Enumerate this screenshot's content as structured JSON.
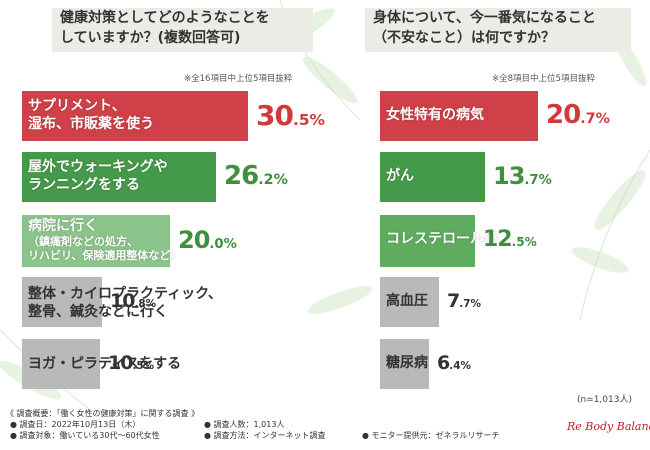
{
  "colors": {
    "red": "#d04048",
    "green_dark": "#45994a",
    "green_mid": "#5fac5f",
    "green_light": "#8cc58c",
    "gray": "#b9b9b9",
    "red_text": "#d03a3a",
    "green_text": "#3f8f3f",
    "gray_text": "#333333"
  },
  "left": {
    "title": [
      "健康対策としてどのようなことを",
      "していますか？(複数回答可)"
    ],
    "note": "※全16項目中上位5項目抜粋",
    "chart_data": {
      "type": "bar",
      "title": "健康対策としてどのようなことをしていますか？(複数回答可)",
      "categories": [
        "サプリメント、湿布、市販薬を使う",
        "屋外でウォーキングやランニングをする",
        "病院に行く（鎮痛剤などの処方、リハビリ、保険適用整体など）",
        "整体・カイロプラクティック、整骨、鍼灸などに行く",
        "ヨガ・ピラティスをする"
      ],
      "values": [
        30.5,
        26.2,
        20.0,
        10.8,
        10.5
      ],
      "unit": "%"
    },
    "labels": [
      [
        "サプリメント、",
        "湿布、市販薬を使う"
      ],
      [
        "屋外でウォーキングや",
        "ランニングをする"
      ],
      [
        "病院に行く",
        "（鎮痛剤などの処方、",
        "リハビリ、保険適用整体など）"
      ],
      [
        "整体・カイロプラクティック、",
        "整骨、鍼灸などに行く"
      ],
      [
        "ヨガ・ピラティスをする"
      ]
    ],
    "value_int": [
      "30",
      "26",
      "20",
      "10",
      "10"
    ],
    "value_dec": [
      ".5%",
      ".2%",
      ".0%",
      ".8%",
      ".5%"
    ]
  },
  "right": {
    "title": [
      "身体について、今一番気になること",
      "（不安なこと）は何ですか？"
    ],
    "note": "※全8項目中上位5項目抜粋",
    "chart_data": {
      "type": "bar",
      "title": "身体について、今一番気になること（不安なこと）は何ですか？",
      "categories": [
        "女性特有の病気",
        "がん",
        "コレステロール値",
        "高血圧",
        "糖尿病"
      ],
      "values": [
        20.7,
        13.7,
        12.5,
        7.7,
        6.4
      ],
      "unit": "%"
    },
    "labels": [
      [
        "女性特有の病気"
      ],
      [
        "がん"
      ],
      [
        "コレステロール値"
      ],
      [
        "高血圧"
      ],
      [
        "糖尿病"
      ]
    ],
    "value_int": [
      "20",
      "13",
      "12",
      "7",
      "6"
    ],
    "value_dec": [
      ".7%",
      ".7%",
      ".5%",
      ".7%",
      ".4%"
    ],
    "n_note": "(n=1,013人)"
  },
  "footer": {
    "summary": "《 調査概要：「働く女性の健康対策」に関する調査 》",
    "date": "● 調査日：2022年10月13日（木）",
    "target": "● 調査対象：働いている30代〜60代女性",
    "count": "● 調査人数：1,013人",
    "method": "● 調査方法：インターネット調査",
    "monitor": "● モニター提供元：ゼネラルリサーチ"
  },
  "logo": {
    "text": "Re Body Balance"
  }
}
